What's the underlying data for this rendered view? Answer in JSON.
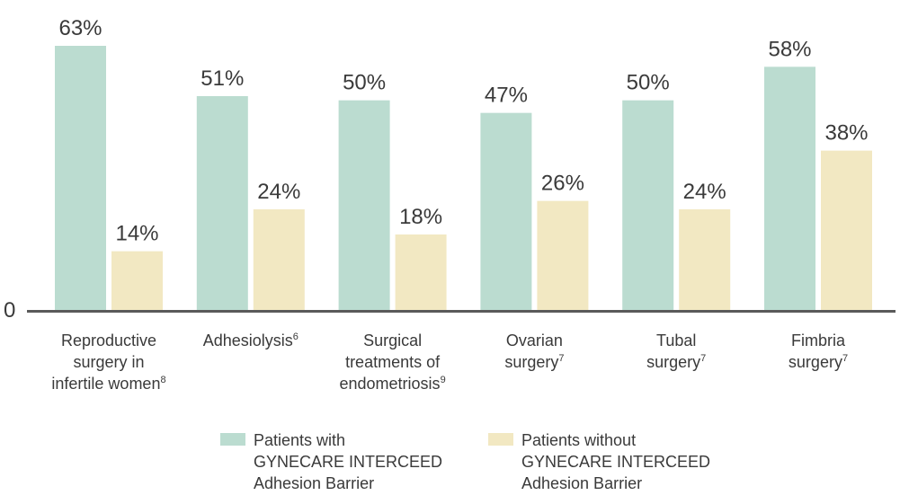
{
  "colors": {
    "with": "#bbdcd0",
    "without": "#f2e8c2",
    "axis": "#5a5a5a",
    "text": "#3a3a3a"
  },
  "chart_data": {
    "type": "bar",
    "title": "",
    "xlabel": "",
    "ylabel": "",
    "ylim": [
      0,
      63
    ],
    "y_tick_labels": [
      "0"
    ],
    "grid": false,
    "legend_position": "bottom",
    "categories": [
      {
        "lines": [
          "Reproductive",
          "surgery in",
          "infertile women"
        ],
        "ref": "8"
      },
      {
        "lines": [
          "Adhesiolysis"
        ],
        "ref": "6"
      },
      {
        "lines": [
          "Surgical",
          "treatments of",
          "endometriosis"
        ],
        "ref": "9"
      },
      {
        "lines": [
          "Ovarian",
          "surgery"
        ],
        "ref": "7"
      },
      {
        "lines": [
          "Tubal",
          "surgery"
        ],
        "ref": "7"
      },
      {
        "lines": [
          "Fimbria",
          "surgery"
        ],
        "ref": "7"
      }
    ],
    "series": [
      {
        "name_lines": [
          "Patients with",
          "GYNECARE INTERCEED",
          "Adhesion Barrier"
        ],
        "values": [
          63,
          51,
          50,
          47,
          50,
          58
        ],
        "labels": [
          "63%",
          "51%",
          "50%",
          "47%",
          "50%",
          "58%"
        ]
      },
      {
        "name_lines": [
          "Patients without",
          "GYNECARE INTERCEED",
          "Adhesion Barrier"
        ],
        "values": [
          14,
          24,
          18,
          26,
          24,
          38
        ],
        "labels": [
          "14%",
          "24%",
          "18%",
          "26%",
          "24%",
          "38%"
        ]
      }
    ]
  }
}
